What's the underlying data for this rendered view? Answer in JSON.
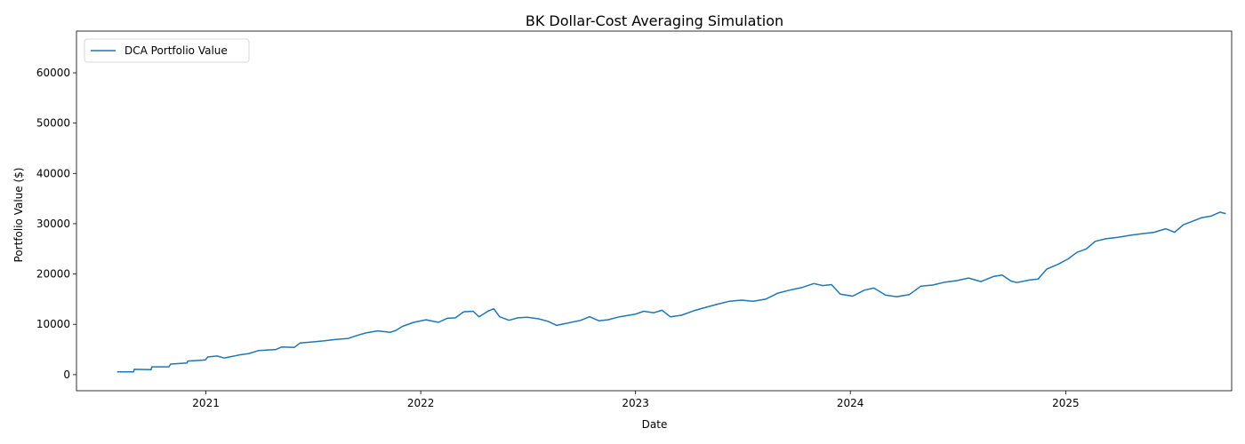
{
  "chart_data": {
    "type": "line",
    "title": "BK Dollar-Cost Averaging Simulation",
    "xlabel": "Date",
    "ylabel": "Portfolio Value ($)",
    "x_ticks": [
      "2021",
      "2022",
      "2023",
      "2024",
      "2025"
    ],
    "y_ticks": [
      0,
      10000,
      20000,
      30000,
      40000,
      50000,
      60000
    ],
    "xlim": [
      "2020-05-26",
      "2025-10-10"
    ],
    "ylim": [
      -3200,
      68300
    ],
    "grid": false,
    "legend": "top-left",
    "series": [
      {
        "name": "DCA Portfolio Value",
        "color": "#1f77b4",
        "points": [
          [
            "2020-08-03",
            550
          ],
          [
            "2020-08-31",
            550
          ],
          [
            "2020-09-01",
            1050
          ],
          [
            "2020-09-30",
            1000
          ],
          [
            "2020-10-01",
            1550
          ],
          [
            "2020-10-30",
            1550
          ],
          [
            "2020-11-02",
            2100
          ],
          [
            "2020-11-30",
            2300
          ],
          [
            "2020-12-01",
            2700
          ],
          [
            "2020-12-31",
            2900
          ],
          [
            "2021-01-04",
            3500
          ],
          [
            "2021-01-20",
            3700
          ],
          [
            "2021-02-01",
            3300
          ],
          [
            "2021-02-26",
            3900
          ],
          [
            "2021-03-15",
            4200
          ],
          [
            "2021-04-01",
            4800
          ],
          [
            "2021-04-30",
            5000
          ],
          [
            "2021-05-10",
            5500
          ],
          [
            "2021-05-31",
            5400
          ],
          [
            "2021-06-10",
            6300
          ],
          [
            "2021-06-30",
            6500
          ],
          [
            "2021-07-20",
            6700
          ],
          [
            "2021-08-10",
            7000
          ],
          [
            "2021-08-31",
            7200
          ],
          [
            "2021-09-15",
            7800
          ],
          [
            "2021-09-30",
            8300
          ],
          [
            "2021-10-20",
            8700
          ],
          [
            "2021-11-10",
            8400
          ],
          [
            "2021-11-20",
            8800
          ],
          [
            "2021-12-01",
            9600
          ],
          [
            "2021-12-20",
            10400
          ],
          [
            "2022-01-10",
            10900
          ],
          [
            "2022-01-31",
            10400
          ],
          [
            "2022-02-15",
            11200
          ],
          [
            "2022-03-01",
            11300
          ],
          [
            "2022-03-15",
            12500
          ],
          [
            "2022-03-31",
            12600
          ],
          [
            "2022-04-10",
            11500
          ],
          [
            "2022-04-25",
            12600
          ],
          [
            "2022-05-05",
            13100
          ],
          [
            "2022-05-15",
            11500
          ],
          [
            "2022-05-31",
            10800
          ],
          [
            "2022-06-15",
            11300
          ],
          [
            "2022-07-01",
            11400
          ],
          [
            "2022-07-20",
            11100
          ],
          [
            "2022-08-05",
            10600
          ],
          [
            "2022-08-20",
            9800
          ],
          [
            "2022-09-10",
            10300
          ],
          [
            "2022-09-30",
            10800
          ],
          [
            "2022-10-15",
            11500
          ],
          [
            "2022-10-31",
            10700
          ],
          [
            "2022-11-15",
            10900
          ],
          [
            "2022-12-05",
            11500
          ],
          [
            "2022-12-31",
            12000
          ],
          [
            "2023-01-15",
            12600
          ],
          [
            "2023-02-01",
            12300
          ],
          [
            "2023-02-15",
            12800
          ],
          [
            "2023-03-01",
            11500
          ],
          [
            "2023-03-20",
            11800
          ],
          [
            "2023-04-10",
            12700
          ],
          [
            "2023-05-01",
            13400
          ],
          [
            "2023-05-20",
            14000
          ],
          [
            "2023-06-10",
            14600
          ],
          [
            "2023-06-30",
            14800
          ],
          [
            "2023-07-20",
            14600
          ],
          [
            "2023-08-10",
            15000
          ],
          [
            "2023-08-31",
            16200
          ],
          [
            "2023-09-20",
            16800
          ],
          [
            "2023-10-10",
            17300
          ],
          [
            "2023-10-31",
            18100
          ],
          [
            "2023-11-15",
            17700
          ],
          [
            "2023-11-30",
            17900
          ],
          [
            "2023-12-15",
            16000
          ],
          [
            "2024-01-05",
            15600
          ],
          [
            "2024-01-25",
            16800
          ],
          [
            "2024-02-10",
            17200
          ],
          [
            "2024-03-01",
            15800
          ],
          [
            "2024-03-20",
            15500
          ],
          [
            "2024-04-10",
            15900
          ],
          [
            "2024-04-30",
            17600
          ],
          [
            "2024-05-20",
            17800
          ],
          [
            "2024-06-10",
            18400
          ],
          [
            "2024-06-30",
            18700
          ],
          [
            "2024-07-20",
            19200
          ],
          [
            "2024-08-10",
            18500
          ],
          [
            "2024-08-31",
            19500
          ],
          [
            "2024-09-15",
            19800
          ],
          [
            "2024-09-30",
            18600
          ],
          [
            "2024-10-10",
            18300
          ],
          [
            "2024-10-31",
            18800
          ],
          [
            "2024-11-15",
            19000
          ],
          [
            "2024-11-30",
            21000
          ],
          [
            "2024-12-20",
            22000
          ],
          [
            "2025-01-05",
            23000
          ],
          [
            "2025-01-20",
            24300
          ],
          [
            "2025-02-05",
            25000
          ],
          [
            "2025-02-20",
            26500
          ],
          [
            "2025-03-10",
            27000
          ],
          [
            "2025-03-31",
            27300
          ],
          [
            "2025-04-20",
            27700
          ],
          [
            "2025-05-10",
            28000
          ],
          [
            "2025-05-31",
            28300
          ],
          [
            "2025-06-20",
            29000
          ],
          [
            "2025-07-05",
            28300
          ],
          [
            "2025-07-20",
            29800
          ],
          [
            "2025-08-05",
            30500
          ],
          [
            "2025-08-20",
            31200
          ],
          [
            "2025-09-05",
            31500
          ],
          [
            "2025-09-20",
            32300
          ],
          [
            "2025-09-30",
            32000
          ]
        ]
      }
    ]
  }
}
